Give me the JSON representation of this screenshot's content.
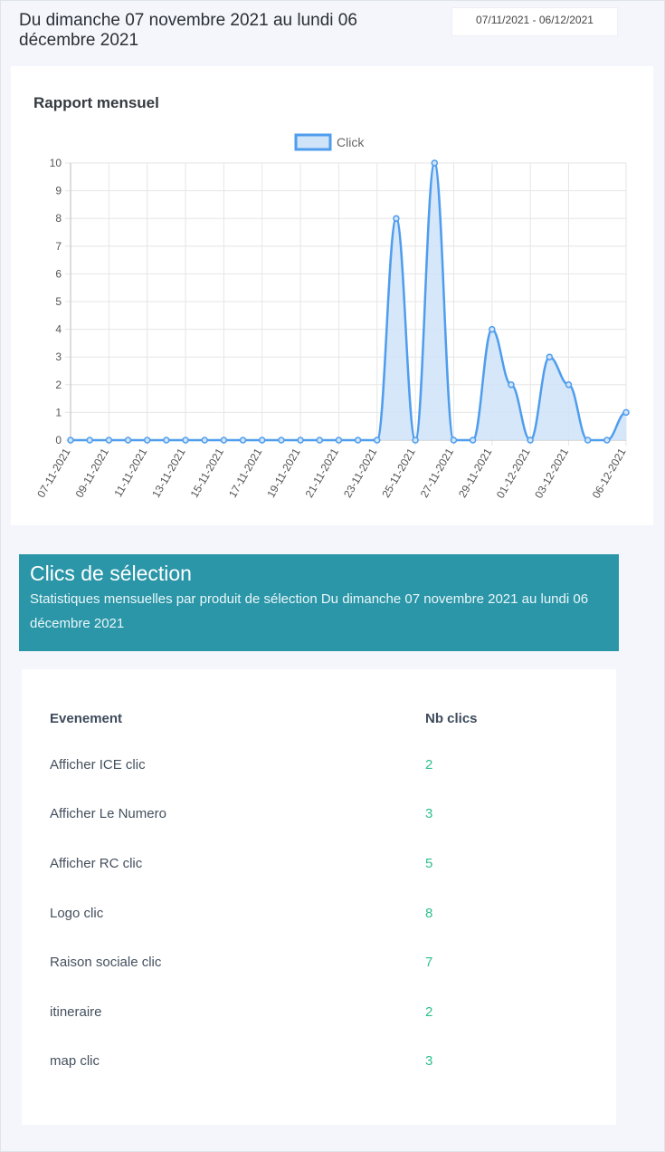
{
  "header": {
    "period_title": "Du dimanche 07 novembre 2021 au lundi 06 décembre 2021",
    "date_range_value": "07/11/2021 - 06/12/2021"
  },
  "chart_card": {
    "title": "Rapport mensuel"
  },
  "chart_data": {
    "type": "area",
    "title": "",
    "legend": [
      "Click"
    ],
    "legend_placement": "top-center",
    "grid": true,
    "ylim": [
      0,
      10
    ],
    "yticks": [
      0,
      1,
      2,
      3,
      4,
      5,
      6,
      7,
      8,
      9,
      10
    ],
    "x": [
      "07-11-2021",
      "08-11-2021",
      "09-11-2021",
      "10-11-2021",
      "11-11-2021",
      "12-11-2021",
      "13-11-2021",
      "14-11-2021",
      "15-11-2021",
      "16-11-2021",
      "17-11-2021",
      "18-11-2021",
      "19-11-2021",
      "20-11-2021",
      "21-11-2021",
      "22-11-2021",
      "23-11-2021",
      "24-11-2021",
      "25-11-2021",
      "26-11-2021",
      "27-11-2021",
      "28-11-2021",
      "29-11-2021",
      "30-11-2021",
      "01-12-2021",
      "02-12-2021",
      "03-12-2021",
      "04-12-2021",
      "05-12-2021",
      "06-12-2021"
    ],
    "xtick_labels": [
      "07-11-2021",
      "09-11-2021",
      "11-11-2021",
      "13-11-2021",
      "15-11-2021",
      "17-11-2021",
      "19-11-2021",
      "21-11-2021",
      "23-11-2021",
      "25-11-2021",
      "27-11-2021",
      "29-11-2021",
      "01-12-2021",
      "03-12-2021",
      "06-12-2021"
    ],
    "series": [
      {
        "name": "Click",
        "values": [
          0,
          0,
          0,
          0,
          0,
          0,
          0,
          0,
          0,
          0,
          0,
          0,
          0,
          0,
          0,
          0,
          0,
          8,
          0,
          10,
          0,
          0,
          4,
          2,
          0,
          3,
          2,
          0,
          0,
          1
        ]
      }
    ],
    "colors": {
      "line": "#4f9ded",
      "fill": "#cfe3f9",
      "grid": "#e6e6e6"
    }
  },
  "selection": {
    "title": "Clics de sélection",
    "subtitle": "Statistiques mensuelles par produit de sélection Du dimanche 07 novembre 2021 au lundi 06 décembre 2021",
    "color": "#2b96a8"
  },
  "table": {
    "headers": {
      "event": "Evenement",
      "count": "Nb clics"
    },
    "rows": [
      {
        "event": "Afficher ICE clic",
        "count": "2"
      },
      {
        "event": "Afficher Le Numero",
        "count": "3"
      },
      {
        "event": "Afficher RC clic",
        "count": "5"
      },
      {
        "event": "Logo clic",
        "count": "8"
      },
      {
        "event": "Raison sociale clic",
        "count": "7"
      },
      {
        "event": "itineraire",
        "count": "2"
      },
      {
        "event": "map clic",
        "count": "3"
      }
    ],
    "count_color": "#2fbf8a"
  }
}
